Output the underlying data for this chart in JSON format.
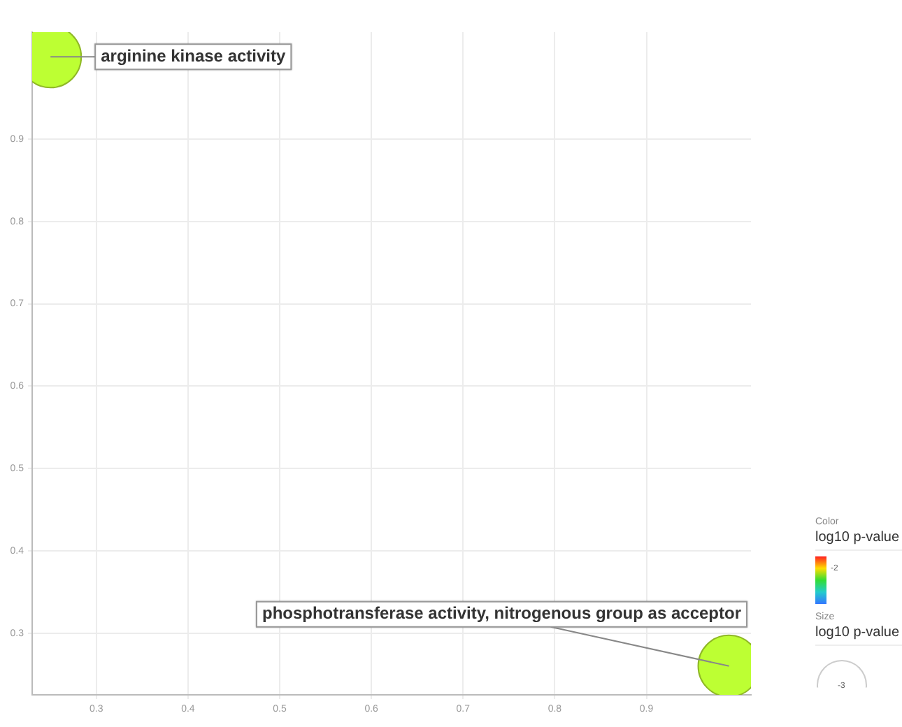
{
  "chart_data": {
    "type": "bubble",
    "x": [
      0.25,
      0.99
    ],
    "values": [
      1.0,
      0.26
    ],
    "sizes": [
      1,
      1
    ],
    "colors": [
      "#bdff33",
      "#bdff33"
    ],
    "xlim": [
      0.23,
      1.014
    ],
    "ylim": [
      0.225,
      1.03
    ],
    "xticks": [
      0.3,
      0.4,
      0.5,
      0.6,
      0.7,
      0.8,
      0.9
    ],
    "yticks": [
      0.3,
      0.4,
      0.5,
      0.6,
      0.7,
      0.8,
      0.9
    ],
    "grid": true,
    "legend": false,
    "annotations": [
      {
        "text": "arginine kinase activity",
        "x": 0.25,
        "y": 1.0
      },
      {
        "text": "phosphotransferase activity, nitrogenous group as acceptor",
        "x": 0.99,
        "y": 0.26
      },
      "Color",
      "log10 p-value",
      "-2",
      "Size",
      "log10 p-value",
      "-3"
    ]
  }
}
